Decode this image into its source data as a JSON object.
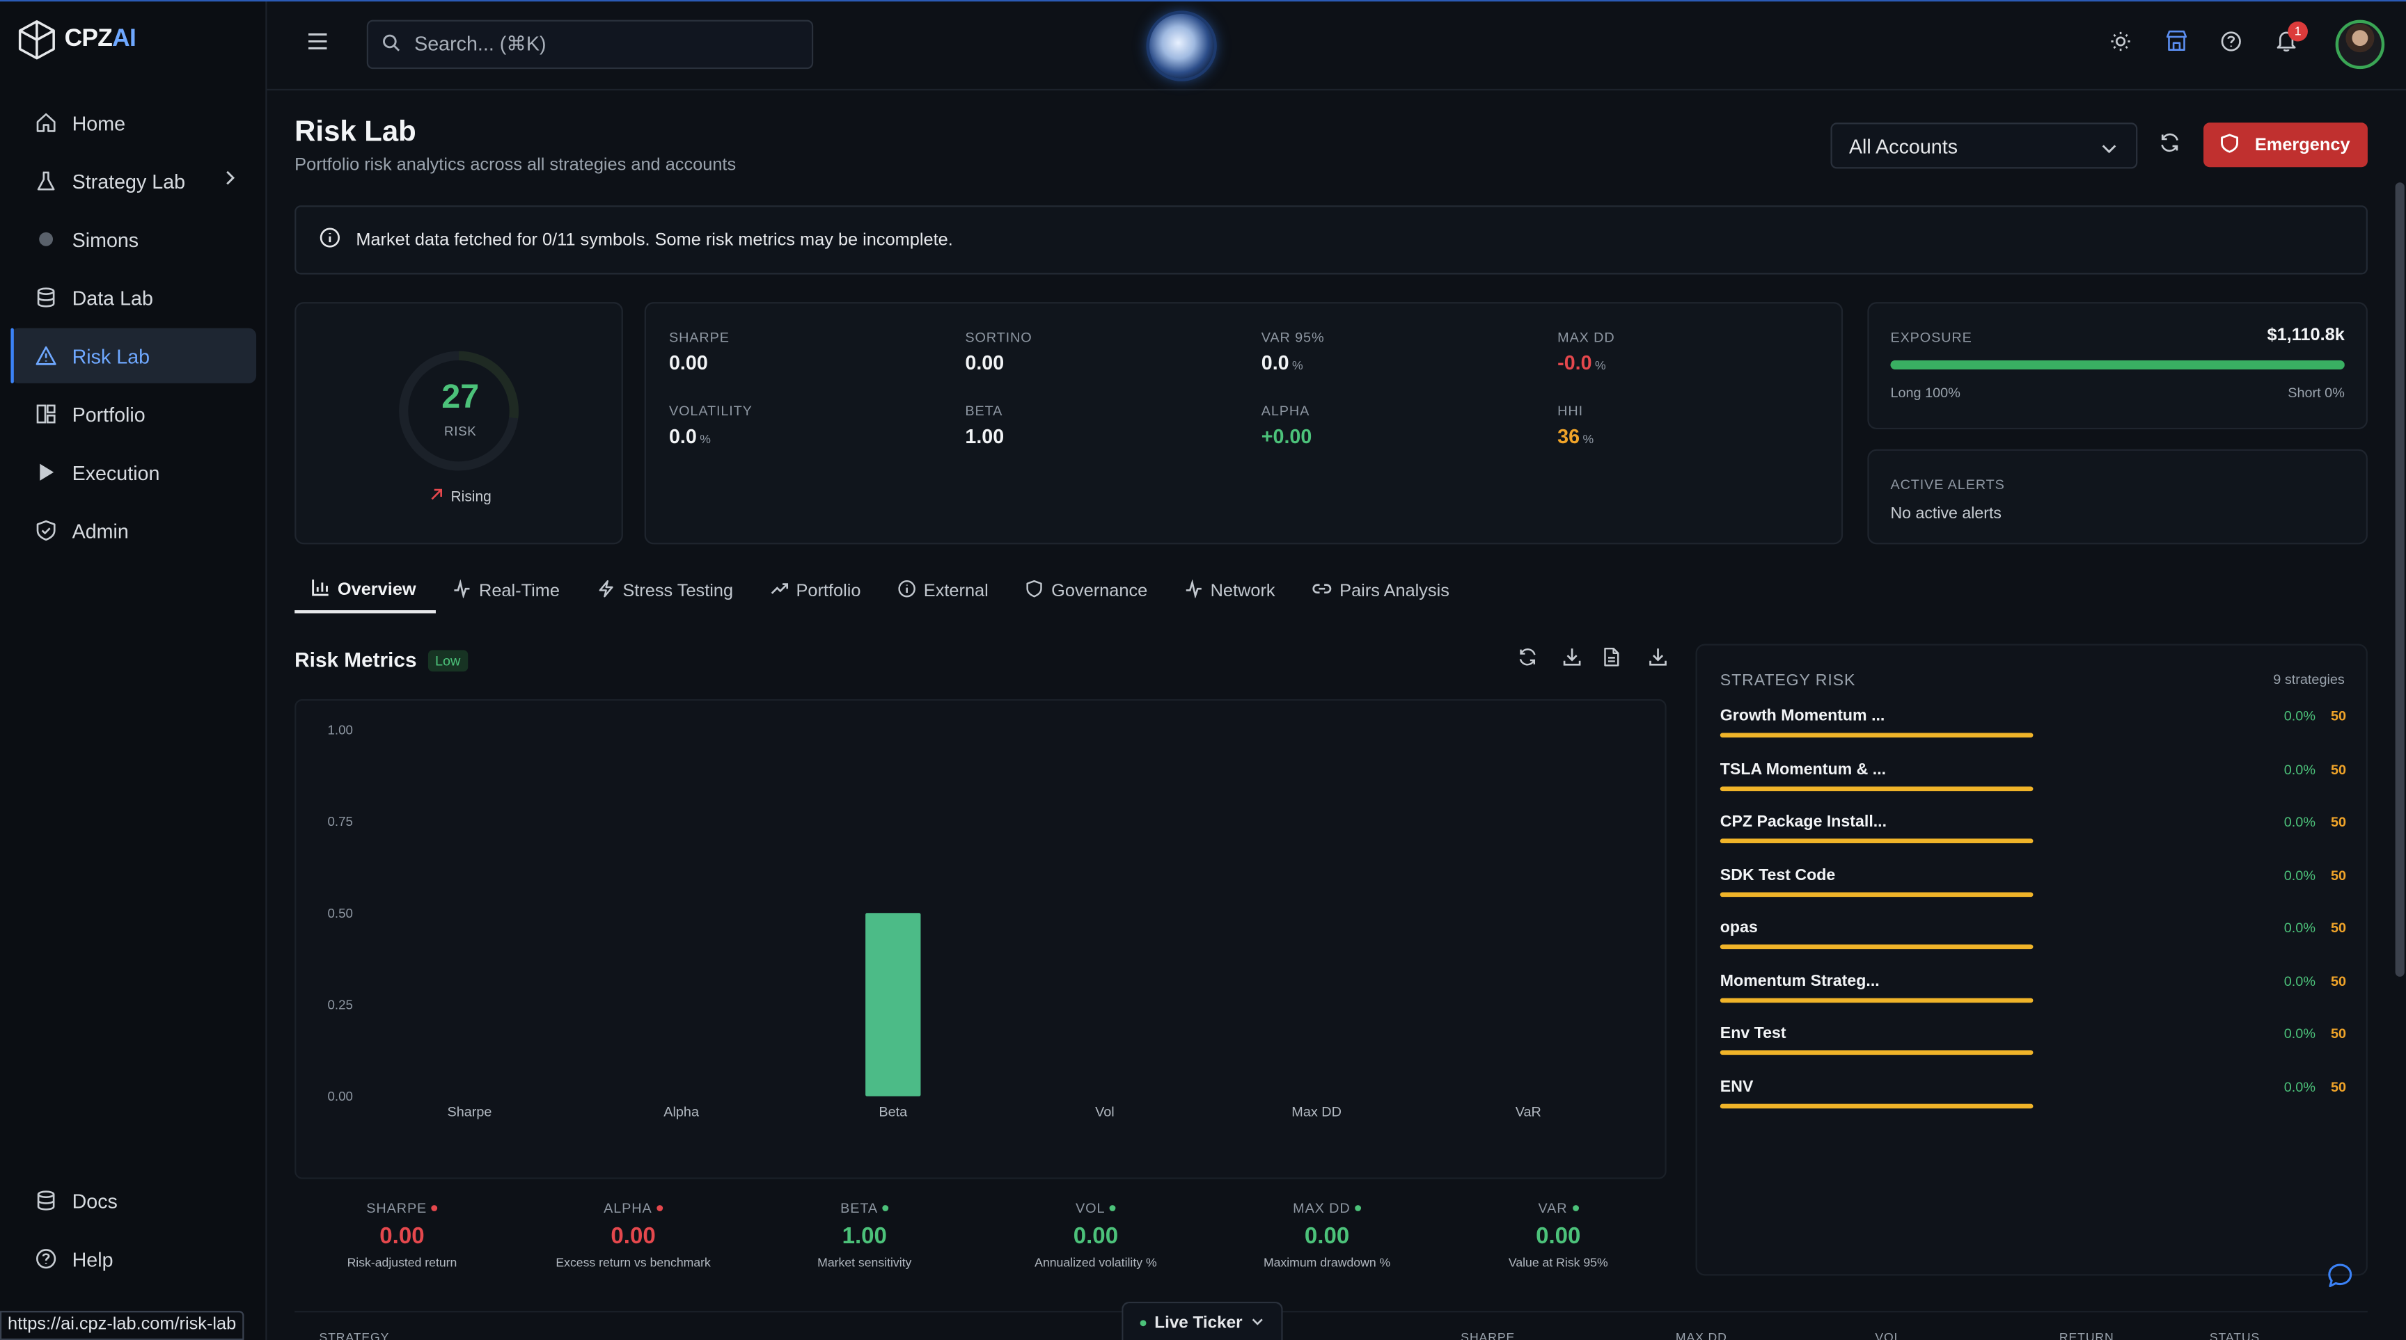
{
  "brand": {
    "name_main": "CPZ",
    "name_accent": "AI"
  },
  "sidebar": {
    "items": [
      {
        "label": "Home",
        "icon": "home-icon"
      },
      {
        "label": "Strategy Lab",
        "icon": "flask-icon"
      },
      {
        "label": "Simons",
        "icon": "dot-icon"
      },
      {
        "label": "Data Lab",
        "icon": "database-icon"
      },
      {
        "label": "Risk Lab",
        "icon": "warning-triangle-icon"
      },
      {
        "label": "Portfolio",
        "icon": "grid-icon"
      },
      {
        "label": "Execution",
        "icon": "play-icon"
      },
      {
        "label": "Admin",
        "icon": "shield-check-icon"
      }
    ],
    "bottom_items": [
      {
        "label": "Docs",
        "icon": "database-icon"
      },
      {
        "label": "Help",
        "icon": "help-circle-icon"
      }
    ],
    "url_hint": "https://ai.cpz-lab.com/risk-lab"
  },
  "topbar": {
    "search_placeholder": "Search... (⌘K)",
    "notification_count": "1"
  },
  "header": {
    "title": "Risk Lab",
    "subtitle": "Portfolio risk analytics across all strategies and accounts",
    "account_select": "All Accounts",
    "emergency_label": "Emergency"
  },
  "alert_message": "Market data fetched for 0/11 symbols. Some risk metrics may be incomplete.",
  "risk_score": {
    "value": "27",
    "label": "RISK",
    "trend": "Rising",
    "fraction": 0.27
  },
  "metrics": {
    "sharpe": {
      "label": "SHARPE",
      "value": "0.00"
    },
    "sortino": {
      "label": "SORTINO",
      "value": "0.00"
    },
    "var95": {
      "label": "VAR 95%",
      "value": "0.0",
      "unit": "%"
    },
    "maxdd": {
      "label": "MAX DD",
      "value": "-0.0",
      "unit": "%"
    },
    "volatility": {
      "label": "VOLATILITY",
      "value": "0.0",
      "unit": "%"
    },
    "beta": {
      "label": "BETA",
      "value": "1.00"
    },
    "alpha": {
      "label": "ALPHA",
      "value": "+0.00"
    },
    "hhi": {
      "label": "HHI",
      "value": "36",
      "unit": "%"
    }
  },
  "exposure": {
    "label": "EXPOSURE",
    "value": "$1,110.8k",
    "long": "Long 100%",
    "short": "Short 0%",
    "long_fraction": 1.0
  },
  "alerts": {
    "label": "ACTIVE ALERTS",
    "text": "No active alerts"
  },
  "tabs": [
    {
      "label": "Overview",
      "icon": "bar-chart-icon"
    },
    {
      "label": "Real-Time",
      "icon": "activity-icon"
    },
    {
      "label": "Stress Testing",
      "icon": "lightning-icon"
    },
    {
      "label": "Portfolio",
      "icon": "trending-up-icon"
    },
    {
      "label": "External",
      "icon": "info-circle-icon"
    },
    {
      "label": "Governance",
      "icon": "shield-icon"
    },
    {
      "label": "Network",
      "icon": "activity-icon"
    },
    {
      "label": "Pairs Analysis",
      "icon": "link-icon"
    }
  ],
  "risk_metrics": {
    "title": "Risk Metrics",
    "badge": "Low"
  },
  "chart_data": {
    "type": "bar",
    "categories": [
      "Sharpe",
      "Alpha",
      "Beta",
      "Vol",
      "Max DD",
      "VaR"
    ],
    "values": [
      0,
      0,
      0.5,
      0,
      0,
      0
    ],
    "ylim": [
      0,
      1
    ],
    "yticks": [
      "0.00",
      "0.25",
      "0.50",
      "0.75",
      "1.00"
    ],
    "bar_color": "#4cbb87",
    "grid": false,
    "title": "",
    "xlabel": "",
    "ylabel": ""
  },
  "stats": [
    {
      "label": "SHARPE",
      "value": "0.00",
      "desc": "Risk-adjusted return",
      "color": "#e5484d"
    },
    {
      "label": "ALPHA",
      "value": "0.00",
      "desc": "Excess return vs benchmark",
      "color": "#e5484d"
    },
    {
      "label": "BETA",
      "value": "1.00",
      "desc": "Market sensitivity",
      "color": "#4cc27a"
    },
    {
      "label": "VOL",
      "value": "0.00",
      "desc": "Annualized volatility %",
      "color": "#4cc27a"
    },
    {
      "label": "MAX DD",
      "value": "0.00",
      "desc": "Maximum drawdown %",
      "color": "#4cc27a"
    },
    {
      "label": "VAR",
      "value": "0.00",
      "desc": "Value at Risk 95%",
      "color": "#4cc27a"
    }
  ],
  "strategy_risk": {
    "title": "STRATEGY RISK",
    "count": "9 strategies",
    "items": [
      {
        "name": "Growth Momentum ...",
        "pct": "0.0%",
        "score": "50",
        "level": 0.5
      },
      {
        "name": "TSLA Momentum & ...",
        "pct": "0.0%",
        "score": "50",
        "level": 0.5
      },
      {
        "name": "CPZ Package Install...",
        "pct": "0.0%",
        "score": "50",
        "level": 0.5
      },
      {
        "name": "SDK Test Code",
        "pct": "0.0%",
        "score": "50",
        "level": 0.5
      },
      {
        "name": "opas",
        "pct": "0.0%",
        "score": "50",
        "level": 0.5
      },
      {
        "name": "Momentum Strateg...",
        "pct": "0.0%",
        "score": "50",
        "level": 0.5
      },
      {
        "name": "Env Test",
        "pct": "0.0%",
        "score": "50",
        "level": 0.5
      },
      {
        "name": "ENV",
        "pct": "0.0%",
        "score": "50",
        "level": 0.5
      }
    ]
  },
  "bottom_table_headers": [
    "STRATEGY",
    "SHARPE",
    "MAX DD",
    "VOL",
    "RETURN",
    "STATUS"
  ],
  "live_ticker": "Live Ticker"
}
